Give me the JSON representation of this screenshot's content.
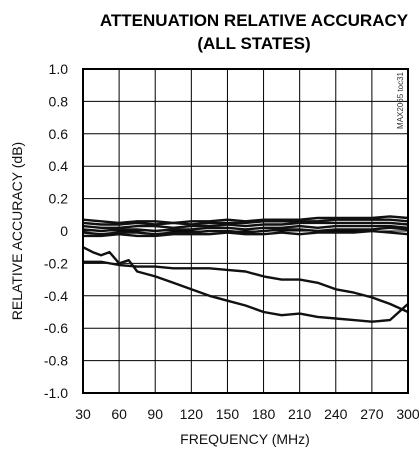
{
  "chart_data": {
    "type": "line",
    "title": "ATTENUATION RELATIVE ACCURACY",
    "subtitle": "(ALL STATES)",
    "xlabel": "FREQUENCY (MHz)",
    "ylabel": "RELATIVE ACCURACY (dB)",
    "part_number": "MAX2065 toc31",
    "xlim": [
      30,
      300
    ],
    "ylim": [
      -1.0,
      1.0
    ],
    "x_ticks": [
      "30",
      "60",
      "90",
      "120",
      "150",
      "180",
      "210",
      "240",
      "270",
      "300"
    ],
    "y_ticks": [
      "1.0",
      "0.8",
      "0.6",
      "0.4",
      "0.2",
      "0",
      "-0.2",
      "-0.4",
      "-0.6",
      "-0.8",
      "-1.0"
    ],
    "grid": true,
    "series": [
      {
        "x": [
          30,
          45,
          60,
          75,
          90,
          105,
          120,
          135,
          150,
          165,
          180,
          195,
          210,
          225,
          240,
          255,
          270,
          285,
          300
        ],
        "y": [
          0.07,
          0.06,
          0.05,
          0.06,
          0.06,
          0.05,
          0.06,
          0.06,
          0.07,
          0.06,
          0.07,
          0.07,
          0.07,
          0.08,
          0.08,
          0.08,
          0.08,
          0.09,
          0.08
        ]
      },
      {
        "x": [
          30,
          45,
          60,
          75,
          90,
          105,
          120,
          135,
          150,
          165,
          180,
          195,
          210,
          225,
          240,
          255,
          270,
          285,
          300
        ],
        "y": [
          0.05,
          0.04,
          0.04,
          0.05,
          0.04,
          0.05,
          0.04,
          0.05,
          0.05,
          0.05,
          0.06,
          0.06,
          0.06,
          0.06,
          0.07,
          0.07,
          0.07,
          0.07,
          0.06
        ]
      },
      {
        "x": [
          30,
          45,
          60,
          75,
          90,
          105,
          120,
          135,
          150,
          165,
          180,
          195,
          210,
          225,
          240,
          255,
          270,
          285,
          300
        ],
        "y": [
          0.03,
          0.02,
          0.02,
          0.03,
          0.03,
          0.02,
          0.03,
          0.03,
          0.04,
          0.03,
          0.04,
          0.04,
          0.05,
          0.05,
          0.05,
          0.05,
          0.05,
          0.05,
          0.04
        ]
      },
      {
        "x": [
          30,
          45,
          60,
          75,
          90,
          105,
          120,
          135,
          150,
          165,
          180,
          195,
          210,
          225,
          240,
          255,
          270,
          285,
          300
        ],
        "y": [
          0.01,
          0.0,
          0.01,
          0.01,
          0.0,
          0.01,
          0.01,
          0.02,
          0.02,
          0.01,
          0.02,
          0.02,
          0.03,
          0.02,
          0.03,
          0.03,
          0.03,
          0.03,
          0.02
        ]
      },
      {
        "x": [
          30,
          45,
          60,
          75,
          90,
          105,
          120,
          135,
          150,
          165,
          180,
          195,
          210,
          225,
          240,
          255,
          270,
          285,
          300
        ],
        "y": [
          -0.01,
          -0.02,
          -0.01,
          -0.01,
          -0.02,
          -0.01,
          -0.01,
          0.0,
          0.0,
          -0.01,
          0.0,
          0.01,
          0.01,
          0.0,
          0.01,
          0.01,
          0.01,
          0.02,
          0.01
        ]
      },
      {
        "x": [
          30,
          45,
          60,
          75,
          90,
          105,
          120,
          135,
          150,
          165,
          180,
          195,
          210,
          225,
          240,
          255,
          270,
          285,
          300
        ],
        "y": [
          -0.03,
          -0.03,
          -0.02,
          -0.03,
          -0.03,
          -0.02,
          -0.02,
          -0.02,
          -0.01,
          -0.02,
          -0.02,
          -0.01,
          -0.02,
          -0.01,
          -0.01,
          -0.01,
          0.0,
          -0.01,
          -0.02
        ]
      },
      {
        "x": [
          30,
          38,
          45,
          52,
          60,
          68,
          75,
          90,
          105,
          120,
          135,
          150,
          165,
          180,
          195,
          210,
          225,
          240,
          255,
          270,
          285,
          300
        ],
        "y": [
          -0.1,
          -0.13,
          -0.15,
          -0.13,
          -0.2,
          -0.18,
          -0.25,
          -0.28,
          -0.32,
          -0.36,
          -0.4,
          -0.43,
          -0.46,
          -0.5,
          -0.52,
          -0.51,
          -0.53,
          -0.54,
          -0.55,
          -0.56,
          -0.55,
          -0.45
        ]
      },
      {
        "x": [
          30,
          45,
          60,
          75,
          90,
          105,
          120,
          135,
          150,
          165,
          180,
          195,
          210,
          225,
          240,
          255,
          270,
          285,
          300
        ],
        "y": [
          -0.19,
          -0.19,
          -0.21,
          -0.22,
          -0.22,
          -0.23,
          -0.23,
          -0.23,
          -0.24,
          -0.25,
          -0.28,
          -0.3,
          -0.3,
          -0.32,
          -0.36,
          -0.38,
          -0.41,
          -0.45,
          -0.5
        ]
      }
    ]
  }
}
